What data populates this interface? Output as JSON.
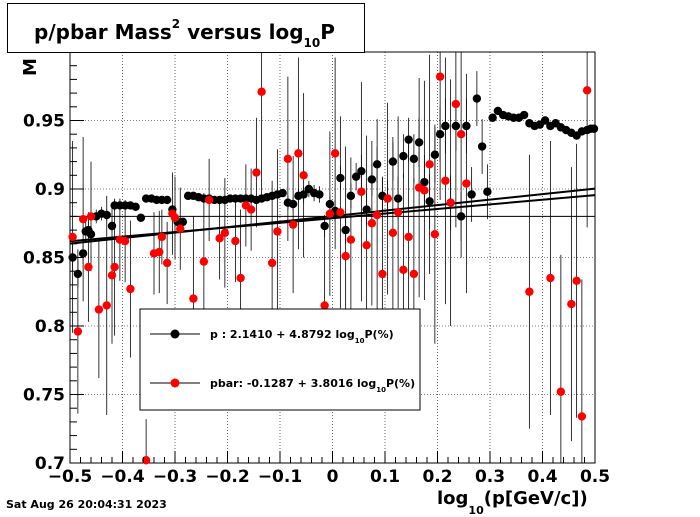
{
  "title": {
    "main": "p/pbar Mass",
    "sup": "2",
    "mid": " versus log",
    "sub": "10",
    "end": "P"
  },
  "timestamp": "Sat Aug 26 20:04:31 2023",
  "xlabel": {
    "pre": "log",
    "sub": "10",
    "post": "(p[GeV/c])"
  },
  "ylabel_fragment": "M",
  "colors": {
    "p": "#000000",
    "pbar": "#ff0000",
    "axis": "#000000",
    "grid": "#000000"
  },
  "chart_data": {
    "type": "scatter",
    "xlim": [
      -0.5,
      0.5
    ],
    "ylim": [
      0.7,
      1.0
    ],
    "x_ticks": [
      "-0.5",
      "-0.4",
      "-0.3",
      "-0.2",
      "-0.1",
      "0",
      "0.1",
      "0.2",
      "0.3",
      "0.4",
      "0.5"
    ],
    "y_ticks": [
      "0.7",
      "0.75",
      "0.8",
      "0.85",
      "0.9",
      "0.95"
    ],
    "grid": true,
    "reference_line_y": 0.88,
    "legend": {
      "placement": "center",
      "entries": [
        {
          "series": "p",
          "label_pre": "p   : 2.1410 + 4.8792 log",
          "label_sub": "10",
          "label_post": "P(%)"
        },
        {
          "series": "pbar",
          "label_pre": "pbar: -0.1287 + 3.8016 log",
          "label_sub": "10",
          "label_post": "P(%)"
        }
      ]
    },
    "series": [
      {
        "name": "p",
        "color": "#000000",
        "fit": {
          "intercept": 0.8802,
          "slope": 0.0401
        },
        "points": [
          [
            -0.495,
            0.85,
            0.01
          ],
          [
            -0.485,
            0.838,
            0.01
          ],
          [
            -0.475,
            0.853,
            0.008
          ],
          [
            -0.47,
            0.869,
            0.008
          ],
          [
            -0.465,
            0.87,
            0.006
          ],
          [
            -0.46,
            0.867,
            0.006
          ],
          [
            -0.45,
            0.88,
            0.005
          ],
          [
            -0.44,
            0.882,
            0.005
          ],
          [
            -0.43,
            0.881,
            0.004
          ],
          [
            -0.42,
            0.873,
            0.004
          ],
          [
            -0.415,
            0.888,
            0.004
          ],
          [
            -0.405,
            0.888,
            0.003
          ],
          [
            -0.395,
            0.888,
            0.003
          ],
          [
            -0.385,
            0.888,
            0.003
          ],
          [
            -0.375,
            0.887,
            0.003
          ],
          [
            -0.365,
            0.879,
            0.003
          ],
          [
            -0.355,
            0.893,
            0.003
          ],
          [
            -0.345,
            0.893,
            0.003
          ],
          [
            -0.335,
            0.892,
            0.003
          ],
          [
            -0.325,
            0.892,
            0.003
          ],
          [
            -0.315,
            0.892,
            0.003
          ],
          [
            -0.305,
            0.885,
            0.003
          ],
          [
            -0.295,
            0.876,
            0.003
          ],
          [
            -0.285,
            0.876,
            0.003
          ],
          [
            -0.275,
            0.895,
            0.002
          ],
          [
            -0.265,
            0.895,
            0.002
          ],
          [
            -0.255,
            0.894,
            0.002
          ],
          [
            -0.245,
            0.893,
            0.002
          ],
          [
            -0.235,
            0.893,
            0.002
          ],
          [
            -0.225,
            0.892,
            0.002
          ],
          [
            -0.215,
            0.892,
            0.002
          ],
          [
            -0.205,
            0.892,
            0.002
          ],
          [
            -0.195,
            0.893,
            0.002
          ],
          [
            -0.185,
            0.893,
            0.002
          ],
          [
            -0.175,
            0.893,
            0.002
          ],
          [
            -0.165,
            0.893,
            0.002
          ],
          [
            -0.155,
            0.893,
            0.002
          ],
          [
            -0.145,
            0.892,
            0.002
          ],
          [
            -0.135,
            0.893,
            0.002
          ],
          [
            -0.125,
            0.894,
            0.002
          ],
          [
            -0.115,
            0.895,
            0.002
          ],
          [
            -0.105,
            0.896,
            0.002
          ],
          [
            -0.095,
            0.897,
            0.002
          ],
          [
            -0.085,
            0.89,
            0.005
          ],
          [
            -0.075,
            0.889,
            0.005
          ],
          [
            -0.065,
            0.895,
            0.005
          ],
          [
            -0.055,
            0.896,
            0.006
          ],
          [
            -0.045,
            0.9,
            0.006
          ],
          [
            -0.035,
            0.897,
            0.006
          ],
          [
            -0.025,
            0.896,
            0.006
          ],
          [
            -0.015,
            0.873,
            0.008
          ],
          [
            -0.005,
            0.889,
            0.007
          ],
          [
            0.005,
            0.884,
            0.008
          ],
          [
            0.015,
            0.908,
            0.009
          ],
          [
            0.025,
            0.87,
            0.01
          ],
          [
            0.035,
            0.895,
            0.009
          ],
          [
            0.045,
            0.909,
            0.01
          ],
          [
            0.055,
            0.913,
            0.012
          ],
          [
            0.065,
            0.885,
            0.012
          ],
          [
            0.075,
            0.907,
            0.012
          ],
          [
            0.085,
            0.918,
            0.013
          ],
          [
            0.095,
            0.895,
            0.014
          ],
          [
            0.105,
            0.893,
            0.014
          ],
          [
            0.115,
            0.92,
            0.014
          ],
          [
            0.125,
            0.893,
            0.016
          ],
          [
            0.135,
            0.924,
            0.016
          ],
          [
            0.145,
            0.936,
            0.016
          ],
          [
            0.155,
            0.922,
            0.018
          ],
          [
            0.165,
            0.934,
            0.018
          ],
          [
            0.175,
            0.905,
            0.02
          ],
          [
            0.185,
            0.891,
            0.02
          ],
          [
            0.195,
            0.925,
            0.02
          ],
          [
            0.205,
            0.94,
            0.02
          ],
          [
            0.215,
            0.946,
            0.02
          ],
          [
            0.225,
            0.89,
            0.02
          ],
          [
            0.235,
            0.946,
            0.018
          ],
          [
            0.245,
            0.88,
            0.018
          ],
          [
            0.255,
            0.946,
            0.02
          ],
          [
            0.265,
            0.896,
            0.02
          ],
          [
            0.275,
            0.966,
            0.02
          ],
          [
            0.285,
            0.931,
            0.02
          ],
          [
            0.295,
            0.898,
            0.02
          ],
          [
            0.305,
            0.952,
            0.003
          ],
          [
            0.315,
            0.957,
            0.003
          ],
          [
            0.325,
            0.954,
            0.003
          ],
          [
            0.335,
            0.953,
            0.003
          ],
          [
            0.345,
            0.952,
            0.003
          ],
          [
            0.355,
            0.952,
            0.003
          ],
          [
            0.365,
            0.954,
            0.003
          ],
          [
            0.375,
            0.948,
            0.003
          ],
          [
            0.385,
            0.946,
            0.003
          ],
          [
            0.395,
            0.947,
            0.003
          ],
          [
            0.405,
            0.95,
            0.003
          ],
          [
            0.415,
            0.946,
            0.003
          ],
          [
            0.425,
            0.948,
            0.003
          ],
          [
            0.435,
            0.945,
            0.003
          ],
          [
            0.445,
            0.943,
            0.003
          ],
          [
            0.455,
            0.941,
            0.003
          ],
          [
            0.465,
            0.939,
            0.003
          ],
          [
            0.475,
            0.942,
            0.003
          ],
          [
            0.485,
            0.943,
            0.003
          ],
          [
            0.492,
            0.944,
            0.003
          ],
          [
            0.498,
            0.944,
            0.003
          ]
        ]
      },
      {
        "name": "pbar",
        "color": "#ff0000",
        "fit": {
          "intercept": 0.8787,
          "slope": 0.0336
        },
        "points": [
          [
            -0.495,
            0.865,
            0.07
          ],
          [
            -0.485,
            0.796,
            0.06
          ],
          [
            -0.475,
            0.878,
            0.06
          ],
          [
            -0.465,
            0.843,
            0.04
          ],
          [
            -0.46,
            0.88,
            0.04
          ],
          [
            -0.445,
            0.812,
            0.05
          ],
          [
            -0.43,
            0.815,
            0.08
          ],
          [
            -0.42,
            0.837,
            0.05
          ],
          [
            -0.415,
            0.843,
            0.05
          ],
          [
            -0.405,
            0.863,
            0.03
          ],
          [
            -0.395,
            0.862,
            0.03
          ],
          [
            -0.385,
            0.827,
            0.05
          ],
          [
            -0.355,
            0.702,
            0.03
          ],
          [
            -0.34,
            0.853,
            0.03
          ],
          [
            -0.33,
            0.854,
            0.03
          ],
          [
            -0.325,
            0.865,
            0.02
          ],
          [
            -0.315,
            0.846,
            0.03
          ],
          [
            -0.305,
            0.882,
            0.03
          ],
          [
            -0.3,
            0.879,
            0.03
          ],
          [
            -0.29,
            0.871,
            0.03
          ],
          [
            -0.265,
            0.82,
            0.06
          ],
          [
            -0.245,
            0.847,
            0.05
          ],
          [
            -0.235,
            0.892,
            0.03
          ],
          [
            -0.215,
            0.864,
            0.03
          ],
          [
            -0.205,
            0.868,
            0.04
          ],
          [
            -0.185,
            0.862,
            0.03
          ],
          [
            -0.175,
            0.835,
            0.05
          ],
          [
            -0.165,
            0.888,
            0.03
          ],
          [
            -0.155,
            0.885,
            0.03
          ],
          [
            -0.145,
            0.912,
            0.04
          ],
          [
            -0.135,
            0.971,
            0.08
          ],
          [
            -0.115,
            0.846,
            0.06
          ],
          [
            -0.105,
            0.869,
            0.06
          ],
          [
            -0.085,
            0.922,
            0.06
          ],
          [
            -0.075,
            0.874,
            0.05
          ],
          [
            -0.065,
            0.926,
            0.07
          ],
          [
            -0.055,
            0.91,
            0.06
          ],
          [
            -0.015,
            0.815,
            0.06
          ],
          [
            -0.005,
            0.882,
            0.06
          ],
          [
            0.005,
            0.926,
            0.07
          ],
          [
            0.015,
            0.883,
            0.07
          ],
          [
            0.025,
            0.851,
            0.08
          ],
          [
            0.035,
            0.863,
            0.06
          ],
          [
            0.055,
            0.898,
            0.08
          ],
          [
            0.065,
            0.859,
            0.08
          ],
          [
            0.075,
            0.875,
            0.06
          ],
          [
            0.085,
            0.881,
            0.07
          ],
          [
            0.095,
            0.838,
            0.07
          ],
          [
            0.105,
            0.893,
            0.07
          ],
          [
            0.115,
            0.868,
            0.07
          ],
          [
            0.125,
            0.883,
            0.07
          ],
          [
            0.135,
            0.841,
            0.07
          ],
          [
            0.145,
            0.865,
            0.07
          ],
          [
            0.155,
            0.838,
            0.07
          ],
          [
            0.165,
            0.901,
            0.08
          ],
          [
            0.175,
            0.899,
            0.08
          ],
          [
            0.185,
            0.918,
            0.08
          ],
          [
            0.195,
            0.867,
            0.08
          ],
          [
            0.205,
            0.982,
            0.09
          ],
          [
            0.215,
            0.906,
            0.09
          ],
          [
            0.225,
            0.89,
            0.09
          ],
          [
            0.235,
            0.962,
            0.09
          ],
          [
            0.245,
            0.94,
            0.09
          ],
          [
            0.255,
            0.904,
            0.08
          ],
          [
            0.375,
            0.825,
            0.1
          ],
          [
            0.415,
            0.835,
            0.1
          ],
          [
            0.435,
            0.752,
            0.1
          ],
          [
            0.455,
            0.816,
            0.1
          ],
          [
            0.465,
            0.833,
            0.1
          ],
          [
            0.475,
            0.734,
            0.1
          ],
          [
            0.485,
            0.972,
            0.1
          ]
        ]
      }
    ]
  }
}
